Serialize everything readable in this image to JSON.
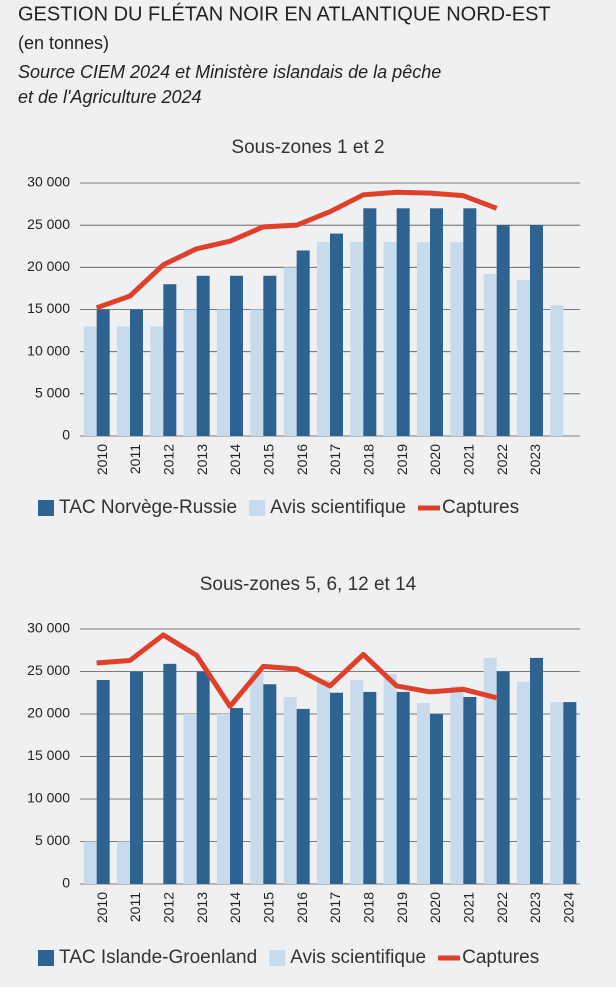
{
  "header": {
    "title": "GESTION DU FLÉTAN NOIR EN ATLANTIQUE NORD-EST",
    "unit": "(en tonnes)",
    "source_lines": [
      "Source CIEM 2024 et Ministère islandais de la pêche",
      "et de l'Agriculture 2024"
    ]
  },
  "chart_data": [
    {
      "type": "bar_line",
      "title": "Sous-zones 1 et 2",
      "categories": [
        "2010",
        "2011",
        "2012",
        "2013",
        "2014",
        "2015",
        "2016",
        "2017",
        "2018",
        "2019",
        "2020",
        "2021",
        "2022",
        "2023",
        null
      ],
      "series": [
        {
          "name": "TAC Norvège-Russie",
          "type": "bar",
          "color": "#2e6290",
          "values": [
            15000,
            15000,
            18000,
            19000,
            19000,
            19000,
            22000,
            24000,
            27000,
            27000,
            27000,
            27000,
            25000,
            25000,
            null
          ]
        },
        {
          "name": "Avis scientifique",
          "type": "bar",
          "color": "#c7dbec",
          "values": [
            13000,
            13000,
            13000,
            15000,
            15000,
            15000,
            20000,
            23000,
            23000,
            23000,
            23000,
            23000,
            19200,
            18500,
            15500
          ]
        },
        {
          "name": "Captures",
          "type": "line",
          "color": "#e0402a",
          "values": [
            15200,
            16600,
            20300,
            22200,
            23100,
            24800,
            25000,
            26600,
            28600,
            28900,
            28800,
            28500,
            27000,
            null,
            null
          ]
        }
      ],
      "ylim": [
        0,
        30000
      ],
      "yticks": [
        0,
        {
          "value": 5000,
          "label": "5 000"
        },
        {
          "value": 10000,
          "label": "10 000"
        },
        {
          "value": 15000,
          "label": "15 000"
        },
        {
          "value": 20000,
          "label": "20 000"
        },
        {
          "value": 25000,
          "label": "25 000"
        },
        {
          "value": 30000,
          "label": "30 000"
        }
      ],
      "grid": true,
      "legend": "bottom"
    },
    {
      "type": "bar_line",
      "title": "Sous-zones 5, 6, 12 et 14",
      "categories": [
        "2010",
        "2011",
        "2012",
        "2013",
        "2014",
        "2015",
        "2016",
        "2017",
        "2018",
        "2019",
        "2020",
        "2021",
        "2022",
        "2023",
        "2024"
      ],
      "series": [
        {
          "name": "TAC Islande-Groenland",
          "type": "bar",
          "color": "#2e6290",
          "values": [
            24000,
            25000,
            25900,
            25000,
            20700,
            23500,
            20600,
            22500,
            22600,
            22600,
            20000,
            22000,
            25000,
            26600,
            21400
          ]
        },
        {
          "name": "Avis scientifique",
          "type": "bar",
          "color": "#c7dbec",
          "values": [
            5000,
            5000,
            null,
            20000,
            20000,
            25000,
            22000,
            24000,
            24000,
            24700,
            21300,
            23300,
            26600,
            23800,
            21400
          ]
        },
        {
          "name": "Captures",
          "type": "line",
          "color": "#e0402a",
          "values": [
            26000,
            26300,
            29300,
            26900,
            20900,
            25600,
            25300,
            23300,
            27000,
            23300,
            22600,
            22900,
            21900,
            null,
            null
          ]
        }
      ],
      "ylim": [
        0,
        30000
      ],
      "yticks": [
        0,
        {
          "value": 5000,
          "label": "5 000"
        },
        {
          "value": 10000,
          "label": "10 000"
        },
        {
          "value": 15000,
          "label": "15 000"
        },
        {
          "value": 20000,
          "label": "20 000"
        },
        {
          "value": 25000,
          "label": "25 000"
        },
        {
          "value": 30000,
          "label": "30 000"
        }
      ],
      "grid": true,
      "legend": "bottom"
    }
  ]
}
